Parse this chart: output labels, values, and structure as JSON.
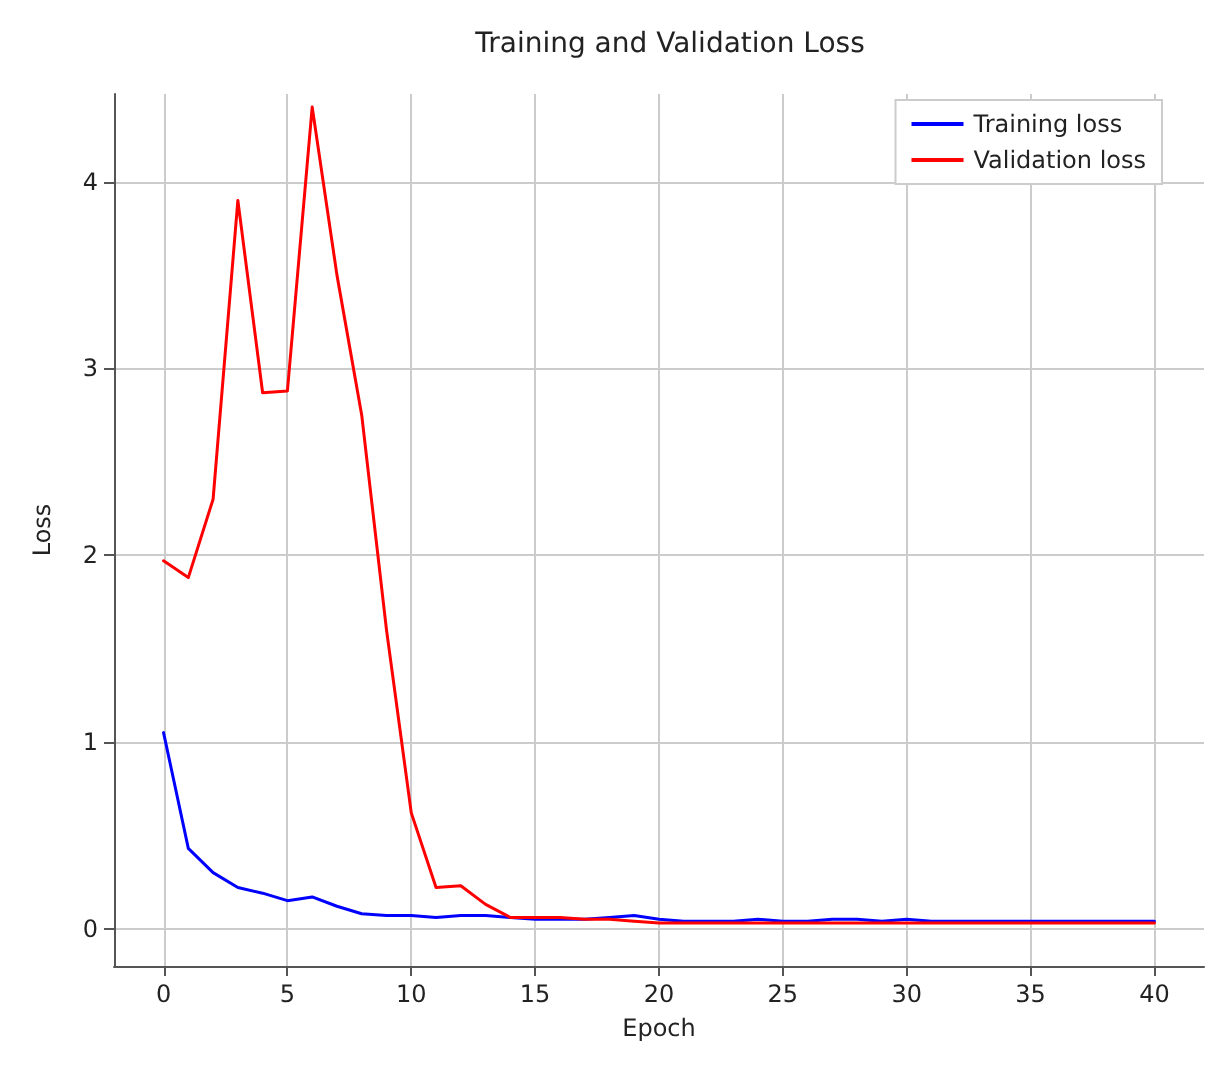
{
  "chart_data": {
    "type": "line",
    "title": "Training and Validation Loss",
    "xlabel": "Epoch",
    "ylabel": "Loss",
    "x": [
      0,
      1,
      2,
      3,
      4,
      5,
      6,
      7,
      8,
      9,
      10,
      11,
      12,
      13,
      14,
      15,
      16,
      17,
      18,
      19,
      20,
      21,
      22,
      23,
      24,
      25,
      26,
      27,
      28,
      29,
      30,
      31,
      32,
      33,
      34,
      35,
      36,
      37,
      38,
      39,
      40
    ],
    "series": [
      {
        "name": "Training loss",
        "color": "#0000ff",
        "values": [
          1.05,
          0.43,
          0.3,
          0.22,
          0.19,
          0.15,
          0.17,
          0.12,
          0.08,
          0.07,
          0.07,
          0.06,
          0.07,
          0.07,
          0.06,
          0.05,
          0.05,
          0.05,
          0.06,
          0.07,
          0.05,
          0.04,
          0.04,
          0.04,
          0.05,
          0.04,
          0.04,
          0.05,
          0.05,
          0.04,
          0.05,
          0.04,
          0.04,
          0.04,
          0.04,
          0.04,
          0.04,
          0.04,
          0.04,
          0.04,
          0.04
        ]
      },
      {
        "name": "Validation loss",
        "color": "#ff0000",
        "values": [
          1.97,
          1.88,
          2.3,
          3.9,
          2.87,
          2.88,
          4.4,
          3.5,
          2.75,
          1.6,
          0.62,
          0.22,
          0.23,
          0.13,
          0.06,
          0.06,
          0.06,
          0.05,
          0.05,
          0.04,
          0.03,
          0.03,
          0.03,
          0.03,
          0.03,
          0.03,
          0.03,
          0.03,
          0.03,
          0.03,
          0.03,
          0.03,
          0.03,
          0.03,
          0.03,
          0.03,
          0.03,
          0.03,
          0.03,
          0.03,
          0.03
        ]
      }
    ],
    "xlim": [
      -2,
      42
    ],
    "xticks": [
      0,
      5,
      10,
      15,
      20,
      25,
      30,
      35,
      40
    ],
    "ylim": [
      -0.2,
      4.47
    ],
    "yticks": [
      0,
      1,
      2,
      3,
      4
    ],
    "grid": true,
    "legend": "top right",
    "marker": "none",
    "line_style": "solid"
  }
}
